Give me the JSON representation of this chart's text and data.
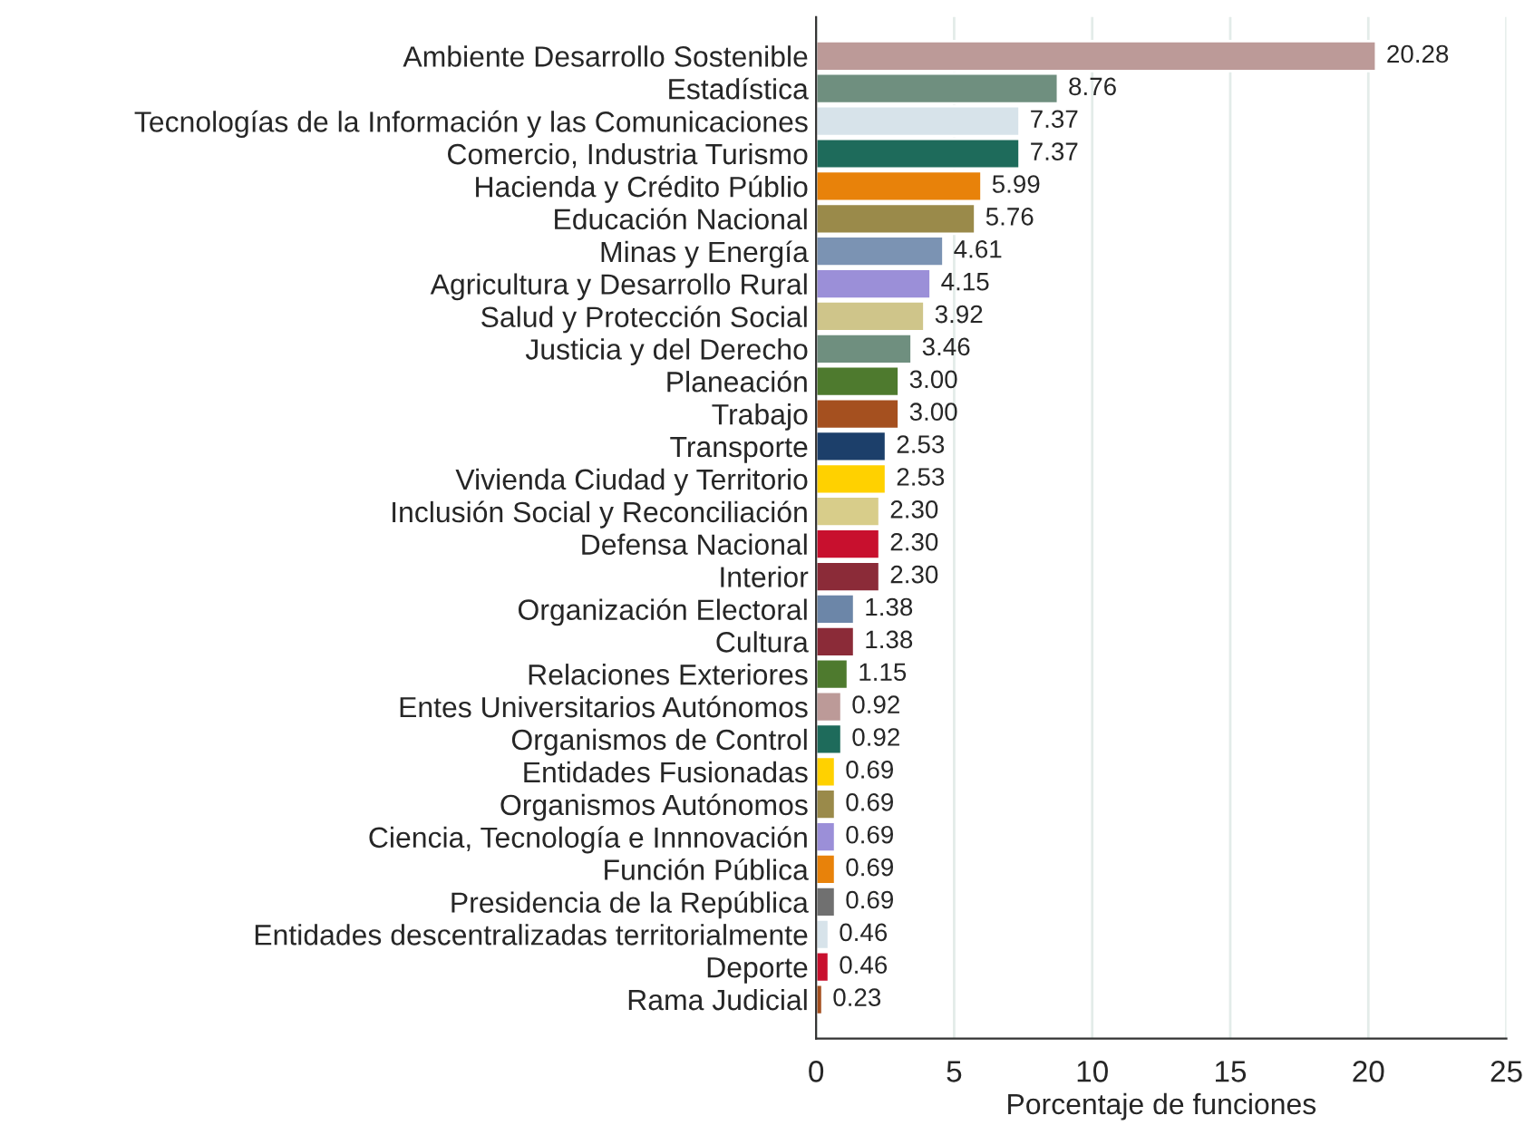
{
  "chart_data": {
    "type": "bar",
    "orientation": "horizontal",
    "xlabel": "Porcentaje de funciones",
    "categories": [
      "Ambiente Desarrollo Sostenible",
      "Estadística",
      "Tecnologías de la Información y las Comunicaciones",
      "Comercio, Industria Turismo",
      "Hacienda y Crédito Públio",
      "Educación Nacional",
      "Minas y Energía",
      "Agricultura y Desarrollo Rural",
      "Salud y Protección Social",
      "Justicia y del Derecho",
      "Planeación",
      "Trabajo",
      "Transporte",
      "Vivienda Ciudad y Territorio",
      "Inclusión Social y Reconciliación",
      "Defensa Nacional",
      "Interior",
      "Organización Electoral",
      "Cultura",
      "Relaciones Exteriores",
      "Entes Universitarios Autónomos",
      "Organismos de Control",
      "Entidades Fusionadas",
      "Organismos Autónomos",
      "Ciencia, Tecnología e Innnovación",
      "Función Pública",
      "Presidencia de la República",
      "Entidades descentralizadas territorialmente",
      "Deporte",
      "Rama Judicial"
    ],
    "values": [
      20.28,
      8.76,
      7.37,
      7.37,
      5.99,
      5.76,
      4.61,
      4.15,
      3.92,
      3.46,
      3.0,
      3.0,
      2.53,
      2.53,
      2.3,
      2.3,
      2.3,
      1.38,
      1.38,
      1.15,
      0.92,
      0.92,
      0.69,
      0.69,
      0.69,
      0.69,
      0.69,
      0.46,
      0.46,
      0.23
    ],
    "value_labels": [
      "20.28",
      "8.76",
      "7.37",
      "7.37",
      "5.99",
      "5.76",
      "4.61",
      "4.15",
      "3.92",
      "3.46",
      "3.00",
      "3.00",
      "2.53",
      "2.53",
      "2.30",
      "2.30",
      "2.30",
      "1.38",
      "1.38",
      "1.15",
      "0.92",
      "0.92",
      "0.69",
      "0.69",
      "0.69",
      "0.69",
      "0.69",
      "0.46",
      "0.46",
      "0.23"
    ],
    "colors": [
      "#bc9a98",
      "#6f8f7f",
      "#d7e3ea",
      "#1e6b5b",
      "#e8820a",
      "#9a8a4a",
      "#7b93b3",
      "#9b8fd8",
      "#cfc58a",
      "#6f8f7f",
      "#4e7a2e",
      "#a5501f",
      "#1c3f6a",
      "#ffd100",
      "#d8cd8a",
      "#c8102e",
      "#8b2b38",
      "#6c86a8",
      "#8b2b38",
      "#4e7a2e",
      "#bc9a98",
      "#1e6b5b",
      "#ffd100",
      "#9a8a4a",
      "#9b8fd8",
      "#e8820a",
      "#707070",
      "#d7e3ea",
      "#c8102e",
      "#a5501f"
    ],
    "xlim": [
      0,
      25
    ],
    "xticks": [
      0,
      5,
      10,
      15,
      20,
      25
    ],
    "grid": "x"
  }
}
